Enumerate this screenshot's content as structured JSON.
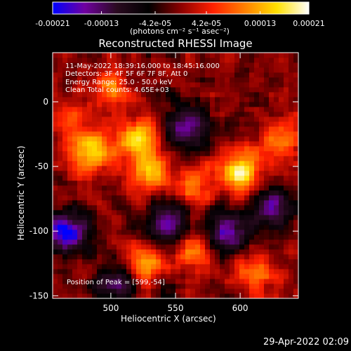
{
  "chart_data": {
    "type": "heatmap",
    "title": "Reconstructed RHESSI Image",
    "xlabel": "Heliocentric X (arcsec)",
    "ylabel": "Heliocentric Y (arcsec)",
    "xlim": [
      455,
      645
    ],
    "ylim": [
      -152,
      38
    ],
    "x_ticks": [
      "500",
      "550",
      "600"
    ],
    "x_tick_values": [
      500,
      550,
      600
    ],
    "y_ticks": [
      "0",
      "-50",
      "-100",
      "-150"
    ],
    "y_tick_values": [
      0,
      -50,
      -100,
      -150
    ],
    "colorbar": {
      "title": "(photons cm⁻² s⁻¹ asec⁻²)",
      "tick_labels": [
        "-0.00021",
        "-0.00013",
        "-4.2e-05",
        "4.2e-05",
        "0.00013",
        "0.00021"
      ],
      "range": [
        -0.00021,
        0.00021
      ],
      "colors": [
        "#0000ff",
        "#7000a0",
        "#2a0a20",
        "#000000",
        "#8b0000",
        "#ff2000",
        "#ff8000",
        "#ffe000",
        "#ffffff"
      ]
    },
    "annotations": [
      "11-May-2022 18:39:16.000 to 18:45:16.000",
      "Detectors: 3F 4F 5F 6F 7F 8F, Att 0",
      "Energy Range: 25.0 - 50.0 keV",
      "Clean     Total counts: 4.65E+03"
    ],
    "peak_annotation": "Position of Peak = [599,-54]",
    "hot_spots": [
      {
        "x": 485,
        "y": -40,
        "v": 0.000165
      },
      {
        "x": 520,
        "y": -28,
        "v": 0.00018
      },
      {
        "x": 528,
        "y": -55,
        "v": 0.00014
      },
      {
        "x": 565,
        "y": -65,
        "v": 0.000125
      },
      {
        "x": 600,
        "y": -54,
        "v": 0.00021
      },
      {
        "x": 632,
        "y": -28,
        "v": 0.00012
      },
      {
        "x": 525,
        "y": -125,
        "v": 0.00013
      },
      {
        "x": 565,
        "y": -115,
        "v": 0.00011
      },
      {
        "x": 500,
        "y": 10,
        "v": 9.5e-05
      },
      {
        "x": 470,
        "y": -15,
        "v": 8e-05
      },
      {
        "x": 610,
        "y": -135,
        "v": 0.0001
      }
    ],
    "cold_spots": [
      {
        "x": 465,
        "y": -100,
        "v": -0.00018
      },
      {
        "x": 560,
        "y": -20,
        "v": -0.00015
      },
      {
        "x": 545,
        "y": -95,
        "v": -0.00016
      },
      {
        "x": 590,
        "y": -100,
        "v": -0.00017
      },
      {
        "x": 505,
        "y": -140,
        "v": -0.00012
      },
      {
        "x": 625,
        "y": -80,
        "v": -0.00014
      }
    ]
  },
  "footer": {
    "timestamp": "29-Apr-2022 02:09"
  }
}
